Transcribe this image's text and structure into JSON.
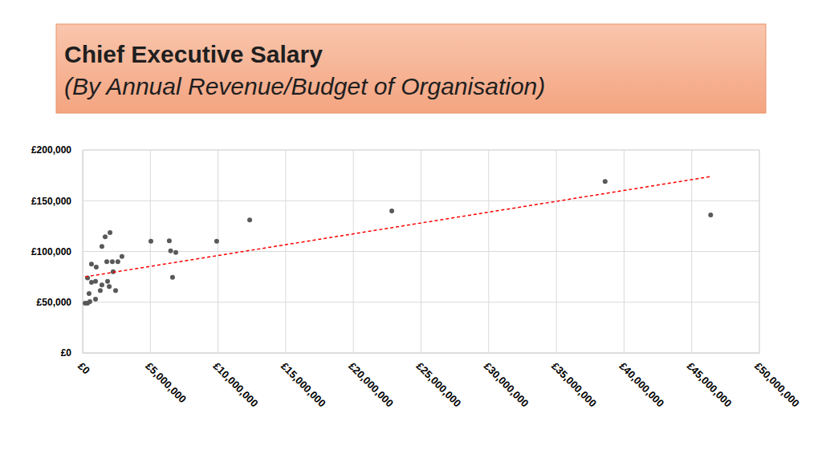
{
  "chart_data": {
    "type": "scatter",
    "title": "Chief Executive Salary",
    "subtitle": "(By Annual Revenue/Budget of Organisation)",
    "grid": true,
    "xlim": [
      0,
      50000000
    ],
    "xticks": [
      {
        "value": 0,
        "label": "£0"
      },
      {
        "value": 5000000,
        "label": "£5,000,000"
      },
      {
        "value": 10000000,
        "label": "£10,000,000"
      },
      {
        "value": 15000000,
        "label": "£15,000,000"
      },
      {
        "value": 20000000,
        "label": "£20,000,000"
      },
      {
        "value": 25000000,
        "label": "£25,000,000"
      },
      {
        "value": 30000000,
        "label": "£30,000,000"
      },
      {
        "value": 35000000,
        "label": "£35,000,000"
      },
      {
        "value": 40000000,
        "label": "£40,000,000"
      },
      {
        "value": 45000000,
        "label": "£45,000,000"
      },
      {
        "value": 50000000,
        "label": "£50,000,000"
      }
    ],
    "ylim": [
      0,
      200000
    ],
    "yticks": [
      {
        "value": 0,
        "label": "£0"
      },
      {
        "value": 50000,
        "label": "£50,000"
      },
      {
        "value": 100000,
        "label": "£100,000"
      },
      {
        "value": 150000,
        "label": "£150,000"
      },
      {
        "value": 200000,
        "label": "£200,000"
      }
    ],
    "series": [
      {
        "type": "scatter",
        "color": "#595959",
        "marker": "circle",
        "x": [
          180000,
          360000,
          530000,
          470000,
          360000,
          650000,
          650000,
          950000,
          1000000,
          950000,
          1300000,
          1420000,
          1420000,
          1660000,
          1780000,
          1840000,
          2020000,
          1960000,
          2190000,
          2250000,
          2430000,
          2600000,
          2900000,
          5040000,
          6400000,
          6500000,
          6880000,
          6640000,
          9900000,
          12340000,
          22840000,
          38600000,
          46400000
        ],
        "values": [
          49000,
          49000,
          50500,
          58500,
          74000,
          69500,
          87500,
          70500,
          84500,
          53000,
          61500,
          67000,
          105000,
          114500,
          90000,
          70500,
          118500,
          65500,
          90000,
          80000,
          61500,
          90000,
          95000,
          110000,
          110500,
          100500,
          99000,
          74500,
          110000,
          131000,
          140000,
          169000,
          136000
        ]
      },
      {
        "type": "line",
        "color": "#ff0000",
        "line_style": "dashed",
        "x": [
          180000,
          46500000
        ],
        "values": [
          75000,
          174000
        ]
      }
    ]
  }
}
